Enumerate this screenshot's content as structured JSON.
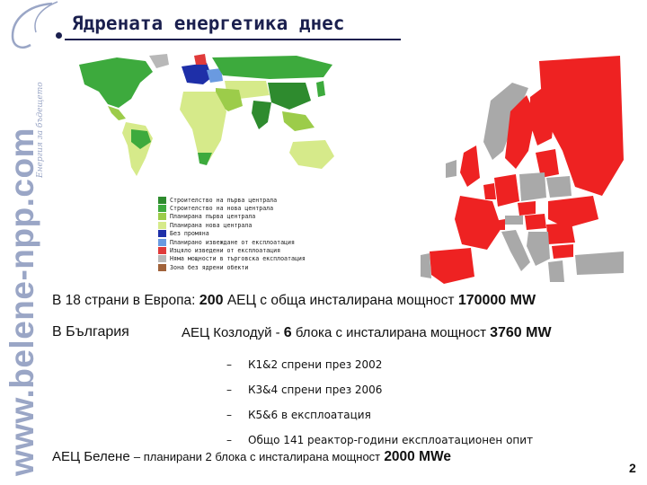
{
  "brand": {
    "url": "www.belene-npp.com",
    "tagline": "Енергия за бъдещето"
  },
  "title": "Ядрената енергетика днес",
  "legend": [
    {
      "label": "Строителство на първа централа",
      "color": "#2e8b2e"
    },
    {
      "label": "Строителство на нова централа",
      "color": "#3daa3d"
    },
    {
      "label": "Планирана първа централа",
      "color": "#9ccc4a"
    },
    {
      "label": "Планирана нова централа",
      "color": "#d6ea8a"
    },
    {
      "label": "Без промяна",
      "color": "#1e2fa8"
    },
    {
      "label": "Планирано извеждане от експлоатация",
      "color": "#6a9ae0"
    },
    {
      "label": "Изцяло изведени от експлоатация",
      "color": "#e03a3a"
    },
    {
      "label": "Няма мощности в търговска експлоатация",
      "color": "#b8b8b8"
    },
    {
      "label": "Зона без ядрени обекти",
      "color": "#a0623a"
    }
  ],
  "europe_line": {
    "prefix": "В 18 страни в Европа:",
    "count": "200",
    "middle": "АЕЦ с обща инсталирана мощност",
    "capacity": "170000 MW"
  },
  "bulgaria_line": {
    "prefix": "В България",
    "plant": "АЕЦ Козлодуй -",
    "units": "6",
    "middle": "блока с инсталирана мощност",
    "capacity": "3760 MW"
  },
  "sub_items": [
    {
      "dash": "–",
      "text": "К1&2 спрени през 2002"
    },
    {
      "dash": "–",
      "text": "К3&4 спрени през 2006"
    },
    {
      "dash": "–",
      "text": "К5&6 в експлоатация"
    },
    {
      "dash": "–",
      "text": "Общо 141 реактор-години експлоатационен опит"
    }
  ],
  "belene_line": {
    "plant": "АЕЦ Белене",
    "middle": "– планирани 2 блока с инсталирана мощност",
    "capacity": "2000 MWe"
  },
  "page_number": "2",
  "colors": {
    "title": "#1a1f4e",
    "brand": "#9aa6c6",
    "europe_red": "#ee2222",
    "europe_grey": "#a9a9a9",
    "ocean": "#ffffff"
  }
}
